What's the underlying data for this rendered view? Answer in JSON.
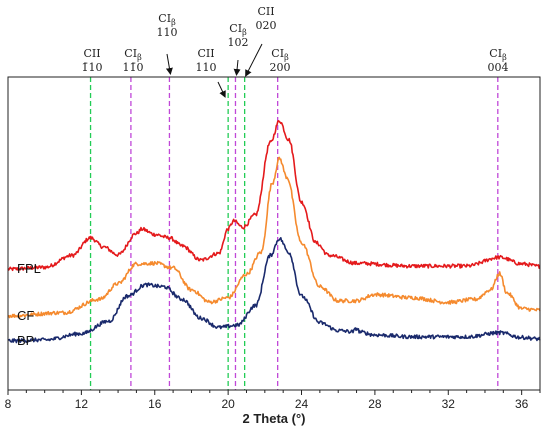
{
  "chart_data": {
    "type": "line",
    "xlabel": "2 Theta (°)",
    "ylabel": "",
    "xlim": [
      8,
      37
    ],
    "ylim": [
      0,
      1
    ],
    "x_ticks": [
      8,
      12,
      16,
      20,
      24,
      28,
      32,
      36
    ],
    "grid": false,
    "legend": "inline-left",
    "series": [
      {
        "name": "FPL",
        "color": "#e41a1c",
        "points": [
          [
            8,
            0.386
          ],
          [
            10,
            0.392
          ],
          [
            11.5,
            0.43
          ],
          [
            12.5,
            0.486
          ],
          [
            13.2,
            0.457
          ],
          [
            14,
            0.432
          ],
          [
            15,
            0.5
          ],
          [
            15.3,
            0.514
          ],
          [
            16,
            0.497
          ],
          [
            16.8,
            0.486
          ],
          [
            17.5,
            0.46
          ],
          [
            18.5,
            0.415
          ],
          [
            19.5,
            0.437
          ],
          [
            20,
            0.515
          ],
          [
            20.3,
            0.54
          ],
          [
            20.8,
            0.52
          ],
          [
            21.5,
            0.56
          ],
          [
            22.3,
            0.79
          ],
          [
            22.8,
            0.86
          ],
          [
            23.3,
            0.8
          ],
          [
            24,
            0.6
          ],
          [
            24.8,
            0.47
          ],
          [
            25.5,
            0.43
          ],
          [
            27,
            0.405
          ],
          [
            30,
            0.396
          ],
          [
            33,
            0.396
          ],
          [
            34.8,
            0.424
          ],
          [
            36,
            0.403
          ],
          [
            37,
            0.395
          ]
        ]
      },
      {
        "name": "CF",
        "color": "#f58a2e",
        "points": [
          [
            8,
            0.237
          ],
          [
            11,
            0.247
          ],
          [
            13,
            0.29
          ],
          [
            14,
            0.34
          ],
          [
            15,
            0.403
          ],
          [
            16,
            0.405
          ],
          [
            17,
            0.39
          ],
          [
            18,
            0.32
          ],
          [
            19,
            0.281
          ],
          [
            20,
            0.295
          ],
          [
            21,
            0.37
          ],
          [
            21.8,
            0.44
          ],
          [
            22.4,
            0.66
          ],
          [
            22.8,
            0.74
          ],
          [
            23.2,
            0.68
          ],
          [
            24,
            0.47
          ],
          [
            25,
            0.33
          ],
          [
            26,
            0.285
          ],
          [
            27,
            0.285
          ],
          [
            28,
            0.305
          ],
          [
            30,
            0.295
          ],
          [
            32,
            0.28
          ],
          [
            33.5,
            0.29
          ],
          [
            34.3,
            0.32
          ],
          [
            34.8,
            0.372
          ],
          [
            35.2,
            0.31
          ],
          [
            36,
            0.26
          ],
          [
            37,
            0.255
          ]
        ]
      },
      {
        "name": "BP",
        "color": "#1a2a6c",
        "points": [
          [
            8,
            0.157
          ],
          [
            10,
            0.16
          ],
          [
            12,
            0.18
          ],
          [
            13.5,
            0.22
          ],
          [
            14.5,
            0.3
          ],
          [
            15.5,
            0.336
          ],
          [
            16.5,
            0.33
          ],
          [
            17.5,
            0.29
          ],
          [
            18.5,
            0.23
          ],
          [
            19.5,
            0.2
          ],
          [
            20.5,
            0.207
          ],
          [
            21.5,
            0.27
          ],
          [
            22.3,
            0.43
          ],
          [
            22.8,
            0.484
          ],
          [
            23.3,
            0.44
          ],
          [
            24,
            0.3
          ],
          [
            25,
            0.215
          ],
          [
            26,
            0.19
          ],
          [
            26.8,
            0.186
          ],
          [
            27,
            0.197
          ],
          [
            27.2,
            0.185
          ],
          [
            28,
            0.176
          ],
          [
            30,
            0.17
          ],
          [
            33,
            0.17
          ],
          [
            34.8,
            0.183
          ],
          [
            36,
            0.168
          ],
          [
            37,
            0.163
          ]
        ]
      }
    ],
    "reference_lines": [
      {
        "x": 12.5,
        "color": "#22cc55"
      },
      {
        "x": 14.7,
        "color": "#c048d8"
      },
      {
        "x": 16.8,
        "color": "#c048d8"
      },
      {
        "x": 20.0,
        "color": "#22cc55"
      },
      {
        "x": 20.4,
        "color": "#c048d8"
      },
      {
        "x": 20.9,
        "color": "#22cc55"
      },
      {
        "x": 22.7,
        "color": "#c048d8"
      },
      {
        "x": 34.7,
        "color": "#c048d8"
      }
    ],
    "annotations": [
      {
        "id": "cii-1-10",
        "name": "CII",
        "name_sub": "",
        "hkl": "1̄10",
        "x": 12.5
      },
      {
        "id": "ci-1-10",
        "name": "CI",
        "name_sub": "β",
        "hkl": "11̄0",
        "x": 14.7
      },
      {
        "id": "ci-110",
        "name": "CI",
        "name_sub": "β",
        "hkl": "110",
        "x": 16.8
      },
      {
        "id": "cii-110",
        "name": "CII",
        "name_sub": "",
        "hkl": "110",
        "x": 20.0
      },
      {
        "id": "ci-102",
        "name": "CI",
        "name_sub": "β",
        "hkl": "102",
        "x": 20.4
      },
      {
        "id": "cii-020",
        "name": "CII",
        "name_sub": "",
        "hkl": "020",
        "x": 20.9
      },
      {
        "id": "ci-200",
        "name": "CI",
        "name_sub": "β",
        "hkl": "200",
        "x": 22.7
      },
      {
        "id": "ci-004",
        "name": "CI",
        "name_sub": "β",
        "hkl": "004",
        "x": 34.7
      }
    ]
  }
}
